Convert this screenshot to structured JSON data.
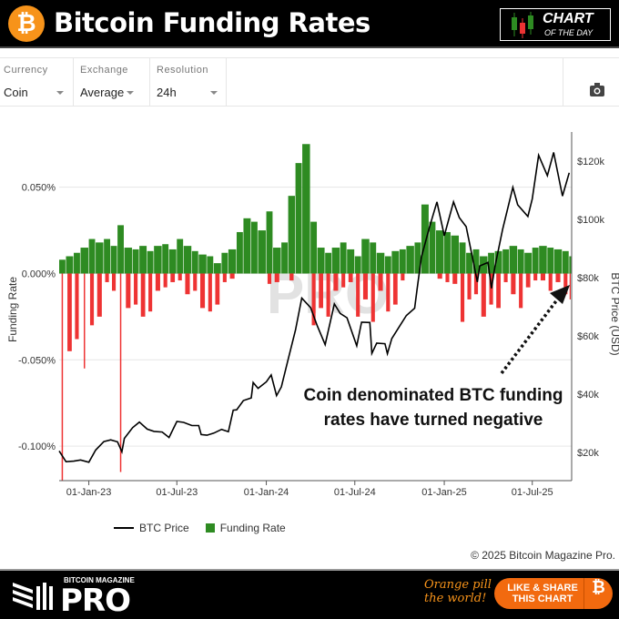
{
  "header": {
    "title": "Bitcoin Funding Rates",
    "logo_glyph": "₿",
    "badge_line1": "CHART",
    "badge_line2": "OF THE DAY"
  },
  "toolbar": {
    "selects": [
      {
        "label": "Currency",
        "value": "Coin"
      },
      {
        "label": "Exchange",
        "value": "Average"
      },
      {
        "label": "Resolution",
        "value": "24h"
      }
    ],
    "camera_icon": "camera-icon"
  },
  "legend": {
    "price": "BTC Price",
    "funding": "Funding Rate"
  },
  "copyright": "© 2025 Bitcoin Magazine Pro.",
  "footer": {
    "brand_top": "BITCOIN MAGAZINE",
    "brand": "PRO",
    "tagline_1": "Orange pill",
    "tagline_2": "the world!",
    "share_1": "LIKE & SHARE",
    "share_2": "THIS CHART",
    "share_glyph": "₿"
  },
  "colors": {
    "positive": "#2e8b22",
    "negative": "#ee3333",
    "price": "#000000",
    "accent": "#f7931a"
  },
  "chart_data": {
    "type": "bar+line",
    "ylabel": "Funding Rate",
    "y2label": "BTC Price (USD)",
    "xlim": [
      "2022-11-01",
      "2025-09-20"
    ],
    "ylim": [
      -0.12,
      0.082
    ],
    "y2lim": [
      10300,
      130000
    ],
    "x_ticks": [
      {
        "date": "2023-01-01",
        "label": "01-Jan-23"
      },
      {
        "date": "2023-07-01",
        "label": "01-Jul-23"
      },
      {
        "date": "2024-01-01",
        "label": "01-Jan-24"
      },
      {
        "date": "2024-07-01",
        "label": "01-Jul-24"
      },
      {
        "date": "2025-01-01",
        "label": "01-Jan-25"
      },
      {
        "date": "2025-07-01",
        "label": "01-Jul-25"
      }
    ],
    "y_ticks": [
      {
        "v": 0.05,
        "label": "0.050%"
      },
      {
        "v": 0,
        "label": "0.000%"
      },
      {
        "v": -0.05,
        "label": "-0.050%"
      },
      {
        "v": -0.1,
        "label": "-0.100%"
      }
    ],
    "y2_ticks": [
      {
        "v": 120000,
        "label": "$120k"
      },
      {
        "v": 100000,
        "label": "$100k"
      },
      {
        "v": 80000,
        "label": "$80k"
      },
      {
        "v": 60000,
        "label": "$60k"
      },
      {
        "v": 40000,
        "label": "$40k"
      },
      {
        "v": 20000,
        "label": "$20k"
      }
    ],
    "grid": true,
    "legend_position": "bottom",
    "annotation": {
      "line1": "Coin denominated BTC funding",
      "line2": "rates have turned negative"
    },
    "watermark": "PRO",
    "funding_rate_pct": [
      [
        "2022-11-01",
        0.008,
        -0.12
      ],
      [
        "2022-11-15",
        0.01,
        -0.045
      ],
      [
        "2022-12-01",
        0.012,
        -0.038
      ],
      [
        "2022-12-15",
        0.015,
        -0.055
      ],
      [
        "2023-01-01",
        0.02,
        -0.03
      ],
      [
        "2023-01-15",
        0.018,
        -0.025
      ],
      [
        "2023-02-01",
        0.02,
        -0.005
      ],
      [
        "2023-02-15",
        0.016,
        -0.01
      ],
      [
        "2023-03-01",
        0.028,
        -0.115
      ],
      [
        "2023-03-15",
        0.015,
        -0.02
      ],
      [
        "2023-04-01",
        0.014,
        -0.018
      ],
      [
        "2023-04-15",
        0.016,
        -0.025
      ],
      [
        "2023-05-01",
        0.013,
        -0.022
      ],
      [
        "2023-05-15",
        0.016,
        -0.01
      ],
      [
        "2023-06-01",
        0.017,
        -0.008
      ],
      [
        "2023-06-15",
        0.014,
        -0.005
      ],
      [
        "2023-07-01",
        0.02,
        -0.004
      ],
      [
        "2023-07-15",
        0.016,
        -0.012
      ],
      [
        "2023-08-01",
        0.013,
        -0.01
      ],
      [
        "2023-08-15",
        0.011,
        -0.02
      ],
      [
        "2023-09-01",
        0.01,
        -0.022
      ],
      [
        "2023-09-15",
        0.006,
        -0.018
      ],
      [
        "2023-10-01",
        0.012,
        -0.005
      ],
      [
        "2023-10-15",
        0.014,
        -0.003
      ],
      [
        "2023-11-01",
        0.024,
        0
      ],
      [
        "2023-11-15",
        0.032,
        0
      ],
      [
        "2023-12-01",
        0.03,
        0
      ],
      [
        "2023-12-15",
        0.025,
        0
      ],
      [
        "2024-01-01",
        0.036,
        -0.006
      ],
      [
        "2024-01-15",
        0.015,
        -0.005
      ],
      [
        "2024-02-01",
        0.018,
        0
      ],
      [
        "2024-02-15",
        0.045,
        -0.004
      ],
      [
        "2024-03-01",
        0.064,
        0
      ],
      [
        "2024-03-15",
        0.075,
        0
      ],
      [
        "2024-04-01",
        0.03,
        -0.03
      ],
      [
        "2024-04-15",
        0.015,
        -0.02
      ],
      [
        "2024-05-01",
        0.012,
        -0.025
      ],
      [
        "2024-05-15",
        0.015,
        -0.01
      ],
      [
        "2024-06-01",
        0.018,
        -0.008
      ],
      [
        "2024-06-15",
        0.014,
        -0.005
      ],
      [
        "2024-07-01",
        0.01,
        -0.025
      ],
      [
        "2024-07-15",
        0.02,
        -0.015
      ],
      [
        "2024-08-01",
        0.018,
        -0.028
      ],
      [
        "2024-08-15",
        0.012,
        -0.01
      ],
      [
        "2024-09-01",
        0.01,
        -0.022
      ],
      [
        "2024-09-15",
        0.013,
        -0.018
      ],
      [
        "2024-10-01",
        0.014,
        -0.004
      ],
      [
        "2024-10-15",
        0.016,
        0
      ],
      [
        "2024-11-01",
        0.018,
        0
      ],
      [
        "2024-11-15",
        0.04,
        0
      ],
      [
        "2024-12-01",
        0.03,
        0
      ],
      [
        "2024-12-15",
        0.025,
        -0.003
      ],
      [
        "2025-01-01",
        0.024,
        -0.005
      ],
      [
        "2025-01-15",
        0.022,
        -0.006
      ],
      [
        "2025-02-01",
        0.018,
        -0.028
      ],
      [
        "2025-02-15",
        0.012,
        -0.015
      ],
      [
        "2025-03-01",
        0.014,
        -0.012
      ],
      [
        "2025-03-15",
        0.01,
        -0.025
      ],
      [
        "2025-04-01",
        0.012,
        -0.018
      ],
      [
        "2025-04-15",
        0.013,
        -0.02
      ],
      [
        "2025-05-01",
        0.014,
        -0.005
      ],
      [
        "2025-05-15",
        0.016,
        -0.012
      ],
      [
        "2025-06-01",
        0.014,
        -0.02
      ],
      [
        "2025-06-15",
        0.012,
        -0.008
      ],
      [
        "2025-07-01",
        0.015,
        -0.004
      ],
      [
        "2025-07-15",
        0.016,
        -0.004
      ],
      [
        "2025-08-01",
        0.015,
        -0.01
      ],
      [
        "2025-08-15",
        0.014,
        -0.005
      ],
      [
        "2025-09-01",
        0.013,
        -0.012
      ],
      [
        "2025-09-15",
        0.01,
        -0.015
      ]
    ],
    "btc_price": [
      [
        "2022-11-01",
        20500
      ],
      [
        "2022-11-15",
        16800
      ],
      [
        "2022-12-01",
        17000
      ],
      [
        "2022-12-15",
        17400
      ],
      [
        "2023-01-01",
        16600
      ],
      [
        "2023-01-15",
        20800
      ],
      [
        "2023-02-01",
        23700
      ],
      [
        "2023-02-15",
        24300
      ],
      [
        "2023-03-01",
        23600
      ],
      [
        "2023-03-10",
        20200
      ],
      [
        "2023-03-15",
        24800
      ],
      [
        "2023-04-01",
        28500
      ],
      [
        "2023-04-15",
        30400
      ],
      [
        "2023-05-01",
        28000
      ],
      [
        "2023-05-15",
        27200
      ],
      [
        "2023-06-01",
        27000
      ],
      [
        "2023-06-15",
        25100
      ],
      [
        "2023-07-01",
        30600
      ],
      [
        "2023-07-15",
        30300
      ],
      [
        "2023-08-01",
        29200
      ],
      [
        "2023-08-15",
        29200
      ],
      [
        "2023-08-20",
        26100
      ],
      [
        "2023-09-01",
        25900
      ],
      [
        "2023-09-15",
        26600
      ],
      [
        "2023-10-01",
        27900
      ],
      [
        "2023-10-15",
        27100
      ],
      [
        "2023-10-25",
        34500
      ],
      [
        "2023-11-01",
        34600
      ],
      [
        "2023-11-15",
        37800
      ],
      [
        "2023-12-01",
        38700
      ],
      [
        "2023-12-05",
        44000
      ],
      [
        "2023-12-15",
        42000
      ],
      [
        "2024-01-01",
        44200
      ],
      [
        "2024-01-11",
        46600
      ],
      [
        "2024-01-22",
        39500
      ],
      [
        "2024-02-01",
        42500
      ],
      [
        "2024-02-15",
        52000
      ],
      [
        "2024-03-01",
        62000
      ],
      [
        "2024-03-14",
        73000
      ],
      [
        "2024-04-01",
        69700
      ],
      [
        "2024-04-15",
        63400
      ],
      [
        "2024-05-01",
        57000
      ],
      [
        "2024-05-20",
        71000
      ],
      [
        "2024-06-01",
        67700
      ],
      [
        "2024-06-15",
        66200
      ],
      [
        "2024-07-05",
        56600
      ],
      [
        "2024-07-15",
        64700
      ],
      [
        "2024-08-01",
        64600
      ],
      [
        "2024-08-05",
        54000
      ],
      [
        "2024-08-15",
        57500
      ],
      [
        "2024-09-01",
        57300
      ],
      [
        "2024-09-06",
        53900
      ],
      [
        "2024-09-15",
        59100
      ],
      [
        "2024-10-01",
        63300
      ],
      [
        "2024-10-15",
        67000
      ],
      [
        "2024-11-01",
        69500
      ],
      [
        "2024-11-06",
        75800
      ],
      [
        "2024-11-15",
        87000
      ],
      [
        "2024-12-01",
        97000
      ],
      [
        "2024-12-17",
        106000
      ],
      [
        "2025-01-01",
        94400
      ],
      [
        "2025-01-20",
        106000
      ],
      [
        "2025-02-01",
        100600
      ],
      [
        "2025-02-15",
        97500
      ],
      [
        "2025-03-01",
        86000
      ],
      [
        "2025-03-10",
        78500
      ],
      [
        "2025-03-15",
        84000
      ],
      [
        "2025-04-01",
        85200
      ],
      [
        "2025-04-08",
        76300
      ],
      [
        "2025-04-15",
        83600
      ],
      [
        "2025-05-01",
        96500
      ],
      [
        "2025-05-22",
        111000
      ],
      [
        "2025-06-01",
        105000
      ],
      [
        "2025-06-22",
        101000
      ],
      [
        "2025-07-01",
        107000
      ],
      [
        "2025-07-14",
        122000
      ],
      [
        "2025-08-01",
        115000
      ],
      [
        "2025-08-14",
        123000
      ],
      [
        "2025-09-01",
        108000
      ],
      [
        "2025-09-15",
        116000
      ]
    ]
  }
}
